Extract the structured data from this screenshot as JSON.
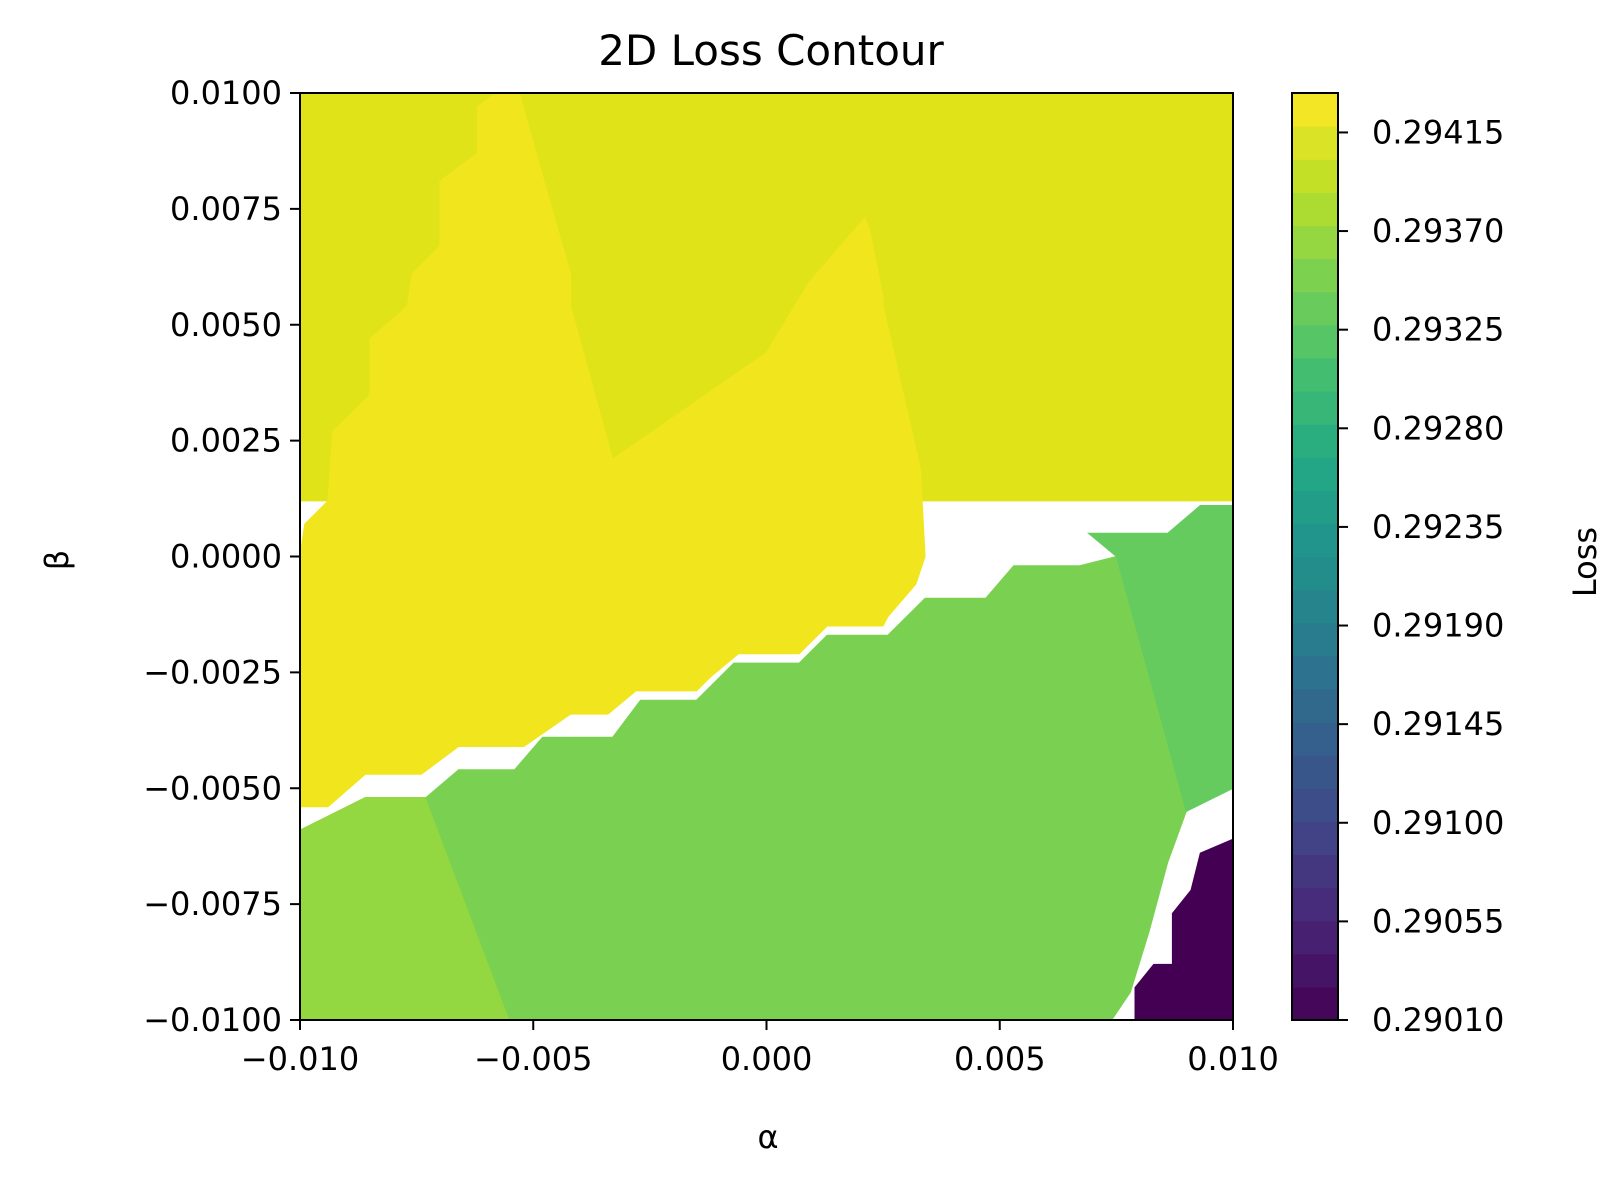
{
  "chart_data": {
    "type": "contour",
    "title": "2D Loss Contour",
    "xlabel": "α",
    "ylabel": "β",
    "xlim": [
      -0.01,
      0.01
    ],
    "ylim": [
      -0.01,
      0.01
    ],
    "x_ticks": [
      -0.01,
      -0.005,
      0.0,
      0.005,
      0.01
    ],
    "x_tick_labels": [
      "−0.010",
      "−0.005",
      "0.000",
      "0.005",
      "0.010"
    ],
    "y_ticks": [
      -0.01,
      -0.0075,
      -0.005,
      -0.0025,
      0.0,
      0.0025,
      0.005,
      0.0075,
      0.01
    ],
    "y_tick_labels": [
      "−0.0100",
      "−0.0075",
      "−0.0050",
      "−0.0025",
      "0.0000",
      "0.0025",
      "0.0050",
      "0.0075",
      "0.0100"
    ],
    "colorbar": {
      "label": "Loss",
      "colormap": "viridis",
      "range": [
        0.2901,
        0.29433
      ],
      "ticks": [
        0.2901,
        0.29055,
        0.291,
        0.29145,
        0.2919,
        0.29235,
        0.2928,
        0.29325,
        0.2937,
        0.29415
      ],
      "tick_labels": [
        "0.29010",
        "0.29055",
        "0.29100",
        "0.29145",
        "0.29190",
        "0.29235",
        "0.29280",
        "0.29325",
        "0.29370",
        "0.29415"
      ]
    },
    "regions": [
      {
        "name": "top-left-yellow-green",
        "level": 0.29406,
        "color": "#dfe318",
        "polygon": [
          [
            -0.01,
            0.01
          ],
          [
            -0.01,
            0.0
          ]
        ]
      }
    ],
    "contour_regions": [
      {
        "level": 0.29406,
        "color": "#dfe318",
        "polygon": [
          [
            -0.01,
            0.01
          ],
          [
            0.01,
            0.01
          ],
          [
            0.01,
            0.0012
          ],
          [
            -0.01,
            0.0012
          ]
        ]
      },
      {
        "level": 0.29424,
        "color": "#f1e51d",
        "polygon": [
          [
            -0.0058,
            0.01
          ],
          [
            -0.0053,
            0.01
          ],
          [
            -0.0046,
            0.0075
          ],
          [
            -0.0042,
            0.0061
          ],
          [
            -0.0042,
            0.0054
          ],
          [
            -0.0033,
            0.0021
          ],
          [
            0.0,
            0.0044
          ],
          [
            0.0009,
            0.0059
          ],
          [
            0.0021,
            0.0073
          ],
          [
            0.0022,
            0.0071
          ],
          [
            0.0025,
            0.0056
          ],
          [
            0.0025,
            0.0054
          ],
          [
            0.0033,
            0.0019
          ],
          [
            0.0034,
            0.0
          ],
          [
            0.0032,
            -0.0006
          ],
          [
            0.0026,
            -0.0013
          ],
          [
            0.0025,
            -0.0015
          ],
          [
            0.0013,
            -0.0015
          ],
          [
            0.0007,
            -0.0021
          ],
          [
            -0.0006,
            -0.0021
          ],
          [
            -0.0012,
            -0.0026
          ],
          [
            -0.0015,
            -0.0029
          ],
          [
            -0.0028,
            -0.0029
          ],
          [
            -0.0034,
            -0.0034
          ],
          [
            -0.0042,
            -0.0034
          ],
          [
            -0.0052,
            -0.0041
          ],
          [
            -0.0066,
            -0.0041
          ],
          [
            -0.0074,
            -0.0047
          ],
          [
            -0.0086,
            -0.0047
          ],
          [
            -0.0094,
            -0.0054
          ],
          [
            -0.01,
            -0.0054
          ],
          [
            -0.01,
            0.0
          ],
          [
            -0.0099,
            0.0007
          ],
          [
            -0.0094,
            0.0012
          ],
          [
            -0.0093,
            0.0027
          ],
          [
            -0.0085,
            0.0035
          ],
          [
            -0.0085,
            0.0047
          ],
          [
            -0.0077,
            0.0054
          ],
          [
            -0.0076,
            0.0061
          ],
          [
            -0.007,
            0.0067
          ],
          [
            -0.007,
            0.0081
          ],
          [
            -0.0062,
            0.0087
          ],
          [
            -0.0062,
            0.0097
          ]
        ]
      },
      {
        "level": 0.29388,
        "color": "#93d741",
        "polygon": [
          [
            -0.01,
            -0.0059
          ],
          [
            -0.0086,
            -0.0052
          ],
          [
            -0.0073,
            -0.0052
          ],
          [
            -0.0055,
            -0.01
          ],
          [
            -0.01,
            -0.01
          ]
        ]
      },
      {
        "level": 0.29352,
        "color": "#7ad151",
        "polygon": [
          [
            -0.0073,
            -0.0052
          ],
          [
            -0.0066,
            -0.0046
          ],
          [
            -0.0054,
            -0.0046
          ],
          [
            -0.0048,
            -0.0039
          ],
          [
            -0.0033,
            -0.0039
          ],
          [
            -0.0027,
            -0.0031
          ],
          [
            -0.0015,
            -0.0031
          ],
          [
            -0.0007,
            -0.0023
          ],
          [
            0.0007,
            -0.0023
          ],
          [
            0.0013,
            -0.0017
          ],
          [
            0.0026,
            -0.0017
          ],
          [
            0.0034,
            -0.0009
          ],
          [
            0.0047,
            -0.0009
          ],
          [
            0.0053,
            -0.0002
          ],
          [
            0.0067,
            -0.0002
          ],
          [
            0.0075,
            0.0
          ],
          [
            0.009,
            -0.0055
          ],
          [
            0.0086,
            -0.0066
          ],
          [
            0.0082,
            -0.0081
          ],
          [
            0.0078,
            -0.0094
          ],
          [
            0.0074,
            -0.01
          ],
          [
            -0.0055,
            -0.01
          ]
        ]
      },
      {
        "level": 0.29334,
        "color": "#65cb5e",
        "polygon": [
          [
            0.0075,
            0.0
          ],
          [
            0.0069,
            0.0005
          ],
          [
            0.0086,
            0.0005
          ],
          [
            0.0093,
            0.0011
          ],
          [
            0.01,
            0.0011
          ],
          [
            0.01,
            -0.005
          ],
          [
            0.009,
            -0.0055
          ]
        ]
      },
      {
        "level": 0.29019,
        "color": "#440154",
        "polygon": [
          [
            0.01,
            -0.0061
          ],
          [
            0.01,
            -0.01
          ],
          [
            0.0079,
            -0.01
          ],
          [
            0.0079,
            -0.0093
          ],
          [
            0.0083,
            -0.0088
          ],
          [
            0.0087,
            -0.0088
          ],
          [
            0.0087,
            -0.0077
          ],
          [
            0.0091,
            -0.0072
          ],
          [
            0.0093,
            -0.0064
          ]
        ]
      }
    ]
  }
}
